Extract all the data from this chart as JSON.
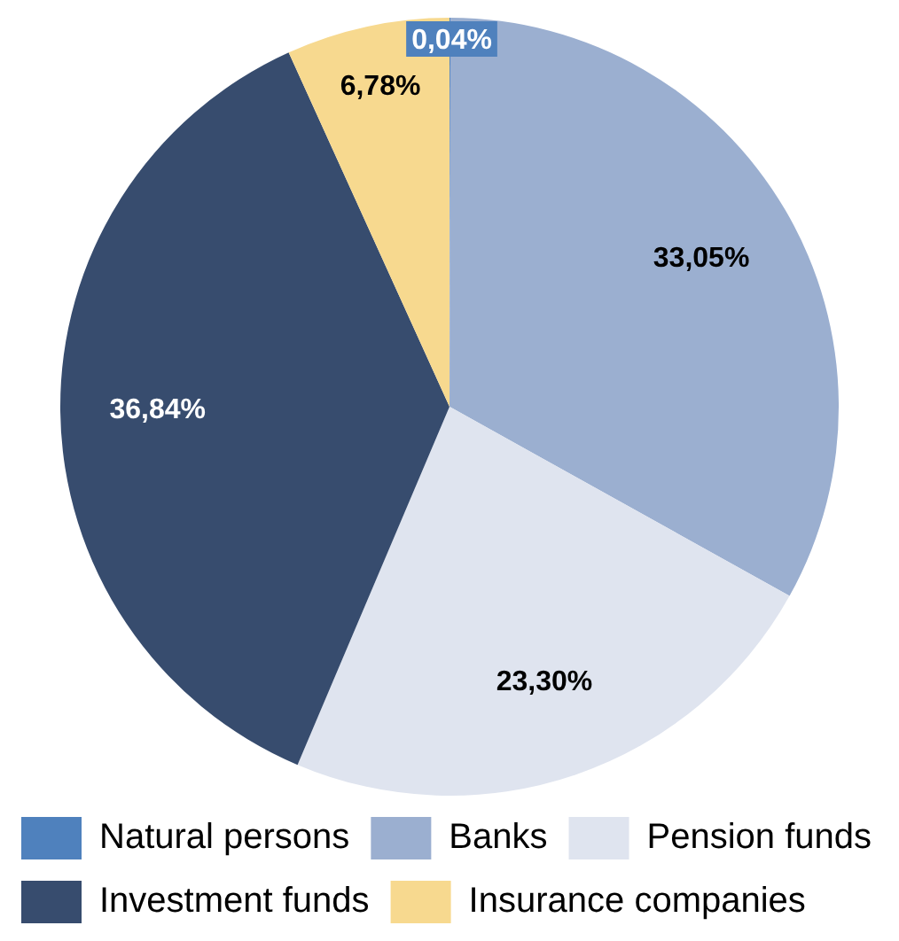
{
  "chart_data": {
    "type": "pie",
    "categories": [
      "Natural persons",
      "Banks",
      "Pension funds",
      "Investment funds",
      "Insurance companies"
    ],
    "values": [
      0.04,
      33.05,
      23.3,
      36.84,
      6.78
    ],
    "value_labels": [
      "0,04%",
      "33,05%",
      "23,30%",
      "36,84%",
      "6,78%"
    ],
    "colors": [
      "#4f81bd",
      "#9bafd0",
      "#dfe4ef",
      "#374c6e",
      "#f7d98f"
    ],
    "legend": "bottom"
  }
}
